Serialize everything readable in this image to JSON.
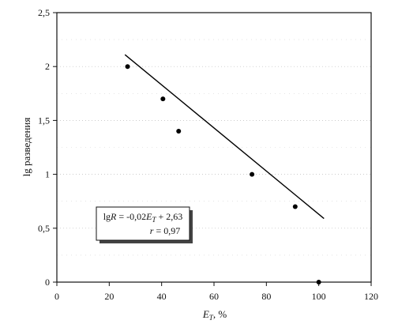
{
  "chart_data": {
    "type": "scatter",
    "xlim": [
      0,
      120
    ],
    "ylim": [
      0,
      2.5
    ],
    "x_ticks": [
      0,
      20,
      40,
      60,
      80,
      100,
      120
    ],
    "x_tick_labels": [
      "0",
      "20",
      "40",
      "60",
      "80",
      "100",
      "120"
    ],
    "y_ticks": [
      0,
      0.5,
      1,
      1.5,
      2,
      2.5
    ],
    "y_tick_labels": [
      "0",
      "0,5",
      "1",
      "1,5",
      "2",
      "2,5"
    ],
    "xlabel": {
      "main": "E",
      "sub": "T",
      "rest": ", %"
    },
    "ylabel": "lg разведения",
    "grid": true,
    "series": [
      {
        "points": [
          {
            "x": 27,
            "y": 2.0
          },
          {
            "x": 40.5,
            "y": 1.7
          },
          {
            "x": 46.5,
            "y": 1.4
          },
          {
            "x": 74.5,
            "y": 1.0
          },
          {
            "x": 91,
            "y": 0.7
          },
          {
            "x": 100,
            "y": 0.0
          }
        ],
        "color": "#000000"
      }
    ],
    "trendline": {
      "slope": -0.02,
      "intercept": 2.63,
      "x_from": 26,
      "x_to": 102
    },
    "annotation": {
      "line1": {
        "a": "lg",
        "b": "R",
        "c": " = -0,02",
        "d": "E",
        "e": "T",
        "f": " + 2,63"
      },
      "line2": {
        "a": "r",
        "b": " = 0,97"
      }
    }
  }
}
